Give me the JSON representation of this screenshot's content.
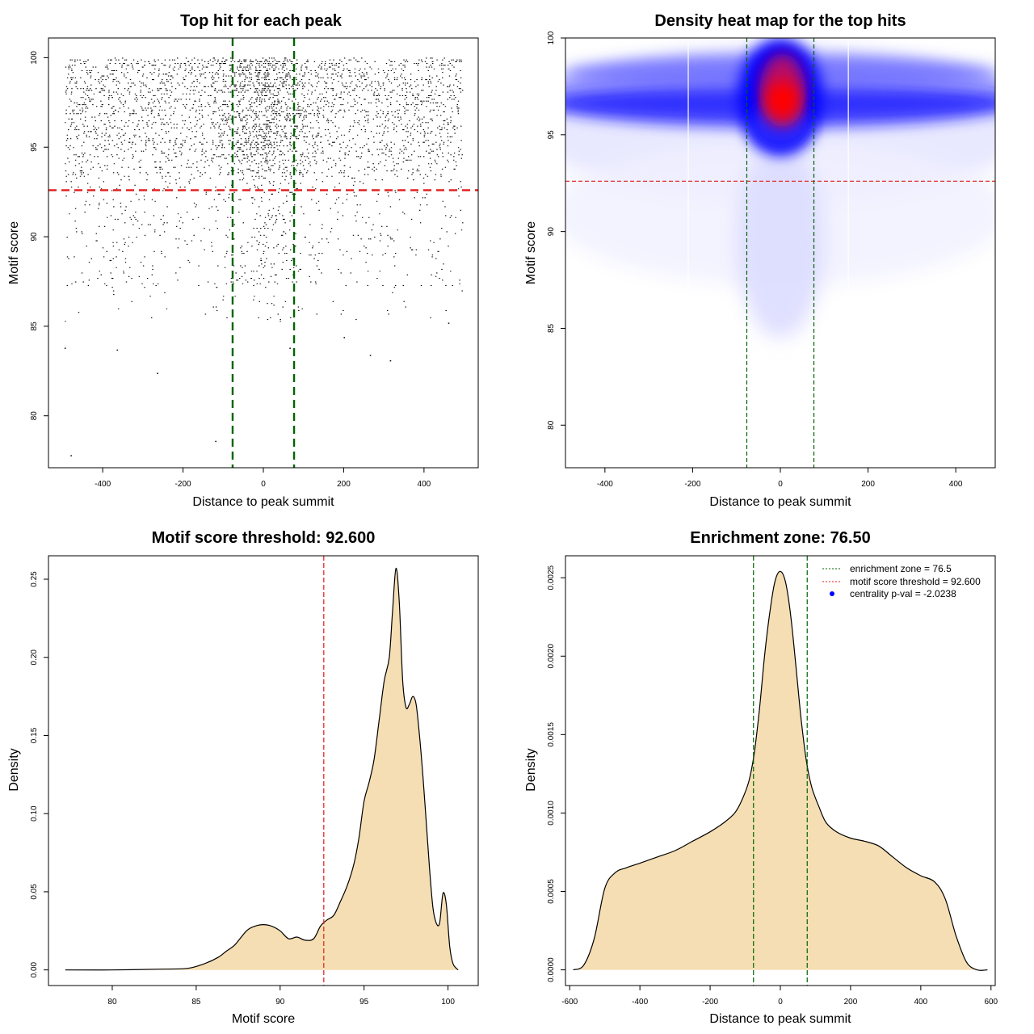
{
  "colors": {
    "threshold": "#e01b1b",
    "zone": "#006400",
    "fill": "#f5deb3",
    "heat_low": "#ffffff",
    "heat_mid": "#0000ff",
    "heat_high": "#ff0000",
    "points": "#000000",
    "legend_point": "#0000ff"
  },
  "chart_data": [
    {
      "id": "scatter",
      "type": "scatter",
      "title": "Top hit for each peak",
      "xlabel": "Distance to peak summit",
      "ylabel": "Motif score",
      "xlim": [
        -535,
        535
      ],
      "ylim": [
        77.1,
        101.1
      ],
      "xticks": [
        -400,
        -200,
        0,
        200,
        400
      ],
      "yticks": [
        80,
        85,
        90,
        95,
        100
      ],
      "x_range": [
        -495,
        495
      ],
      "hlines": [
        92.6
      ],
      "vlines": [
        -76.5,
        76.5
      ],
      "points_summary": {
        "approx_count": 9000,
        "outliers": [
          {
            "x": -495,
            "y": 83.8
          },
          {
            "x": -480,
            "y": 77.8
          },
          {
            "x": -365,
            "y": 83.7
          },
          {
            "x": -265,
            "y": 82.4
          },
          {
            "x": -120,
            "y": 78.6
          },
          {
            "x": 65,
            "y": 83.8
          },
          {
            "x": 200,
            "y": 84.4
          },
          {
            "x": 265,
            "y": 83.4
          },
          {
            "x": 315,
            "y": 83.1
          },
          {
            "x": 460,
            "y": 85.2
          }
        ]
      }
    },
    {
      "id": "heatmap",
      "type": "heatmap",
      "title": "Density heat map for the top hits",
      "xlabel": "Distance to peak summit",
      "ylabel": "Motif score",
      "xlim": [
        -490,
        490
      ],
      "ylim": [
        77.8,
        100
      ],
      "xticks": [
        -400,
        -200,
        0,
        200,
        400
      ],
      "yticks": [
        80,
        85,
        90,
        95,
        100
      ],
      "hlines": [
        92.6
      ],
      "vlines": [
        -76.5,
        76.5
      ],
      "white_vlines": [
        -210,
        155
      ]
    },
    {
      "id": "score_density",
      "type": "area",
      "title": "Motif score threshold: 92.600",
      "xlabel": "Motif score",
      "ylabel": "Density",
      "xlim": [
        76.2,
        101.8
      ],
      "ylim": [
        -0.01,
        0.265
      ],
      "xticks": [
        80,
        85,
        90,
        95,
        100
      ],
      "yticks": [
        0.0,
        0.05,
        0.1,
        0.15,
        0.2,
        0.25
      ],
      "ytick_labels": [
        "0.00",
        "0.05",
        "0.10",
        "0.15",
        "0.20",
        "0.25"
      ],
      "vlines": [
        92.6
      ],
      "x": [
        77.2,
        80,
        83,
        84.5,
        85.5,
        86.3,
        86.8,
        87.3,
        88,
        88.5,
        89,
        89.5,
        90,
        90.5,
        91,
        91.5,
        92,
        92.4,
        92.8,
        93.2,
        93.6,
        94,
        94.4,
        94.7,
        95,
        95.3,
        95.6,
        95.9,
        96.2,
        96.5,
        96.7,
        96.9,
        97.1,
        97.3,
        97.5,
        97.7,
        97.9,
        98.1,
        98.3,
        98.5,
        98.7,
        98.9,
        99.1,
        99.3,
        99.5,
        99.7,
        99.9,
        100.1,
        100.3,
        100.6
      ],
      "y": [
        0,
        0,
        0.0005,
        0.001,
        0.004,
        0.008,
        0.012,
        0.016,
        0.025,
        0.028,
        0.029,
        0.028,
        0.025,
        0.02,
        0.021,
        0.019,
        0.02,
        0.028,
        0.032,
        0.035,
        0.044,
        0.054,
        0.068,
        0.085,
        0.108,
        0.12,
        0.135,
        0.16,
        0.185,
        0.2,
        0.23,
        0.257,
        0.235,
        0.185,
        0.168,
        0.17,
        0.175,
        0.17,
        0.15,
        0.125,
        0.095,
        0.065,
        0.04,
        0.03,
        0.03,
        0.049,
        0.042,
        0.015,
        0.004,
        0
      ]
    },
    {
      "id": "distance_density",
      "type": "area",
      "title": "Enrichment zone: 76.50",
      "xlabel": "Distance to peak summit",
      "ylabel": "Density",
      "xlim": [
        -612,
        612
      ],
      "ylim": [
        -0.0001,
        0.00264
      ],
      "xticks": [
        -600,
        -400,
        -200,
        0,
        200,
        400,
        600
      ],
      "yticks": [
        0,
        0.0005,
        0.001,
        0.0015,
        0.002,
        0.0025
      ],
      "ytick_labels": [
        "0.0000",
        "0.0005",
        "0.0010",
        "0.0015",
        "0.0020",
        "0.0025"
      ],
      "vlines": [
        -76.5,
        76.5
      ],
      "x": [
        -590,
        -560,
        -530,
        -500,
        -470,
        -440,
        -400,
        -350,
        -300,
        -250,
        -200,
        -160,
        -130,
        -110,
        -90,
        -75,
        -60,
        -45,
        -30,
        -15,
        0,
        15,
        30,
        45,
        60,
        75,
        90,
        110,
        130,
        160,
        200,
        240,
        280,
        320,
        360,
        400,
        440,
        470,
        500,
        530,
        560,
        590
      ],
      "y": [
        0,
        3e-05,
        0.0002,
        0.00052,
        0.00062,
        0.00065,
        0.00068,
        0.00072,
        0.00076,
        0.00082,
        0.00088,
        0.00094,
        0.001,
        0.00108,
        0.0012,
        0.00137,
        0.00165,
        0.002,
        0.00228,
        0.00248,
        0.00254,
        0.00247,
        0.00225,
        0.00192,
        0.00158,
        0.00132,
        0.00116,
        0.00104,
        0.00094,
        0.00088,
        0.00084,
        0.00082,
        0.00079,
        0.00072,
        0.00065,
        0.0006,
        0.00056,
        0.00045,
        0.00022,
        5e-05,
        0,
        0
      ]
    }
  ],
  "legend": {
    "items": [
      {
        "label": "enrichment zone = 76.5",
        "kind": "dotted-line",
        "color": "#006400"
      },
      {
        "label": "motif score threshold = 92.600",
        "kind": "dotted-line",
        "color": "#e01b1b"
      },
      {
        "label": "centrality p-val = -2.0238",
        "kind": "point",
        "color": "#0000ff"
      }
    ]
  }
}
